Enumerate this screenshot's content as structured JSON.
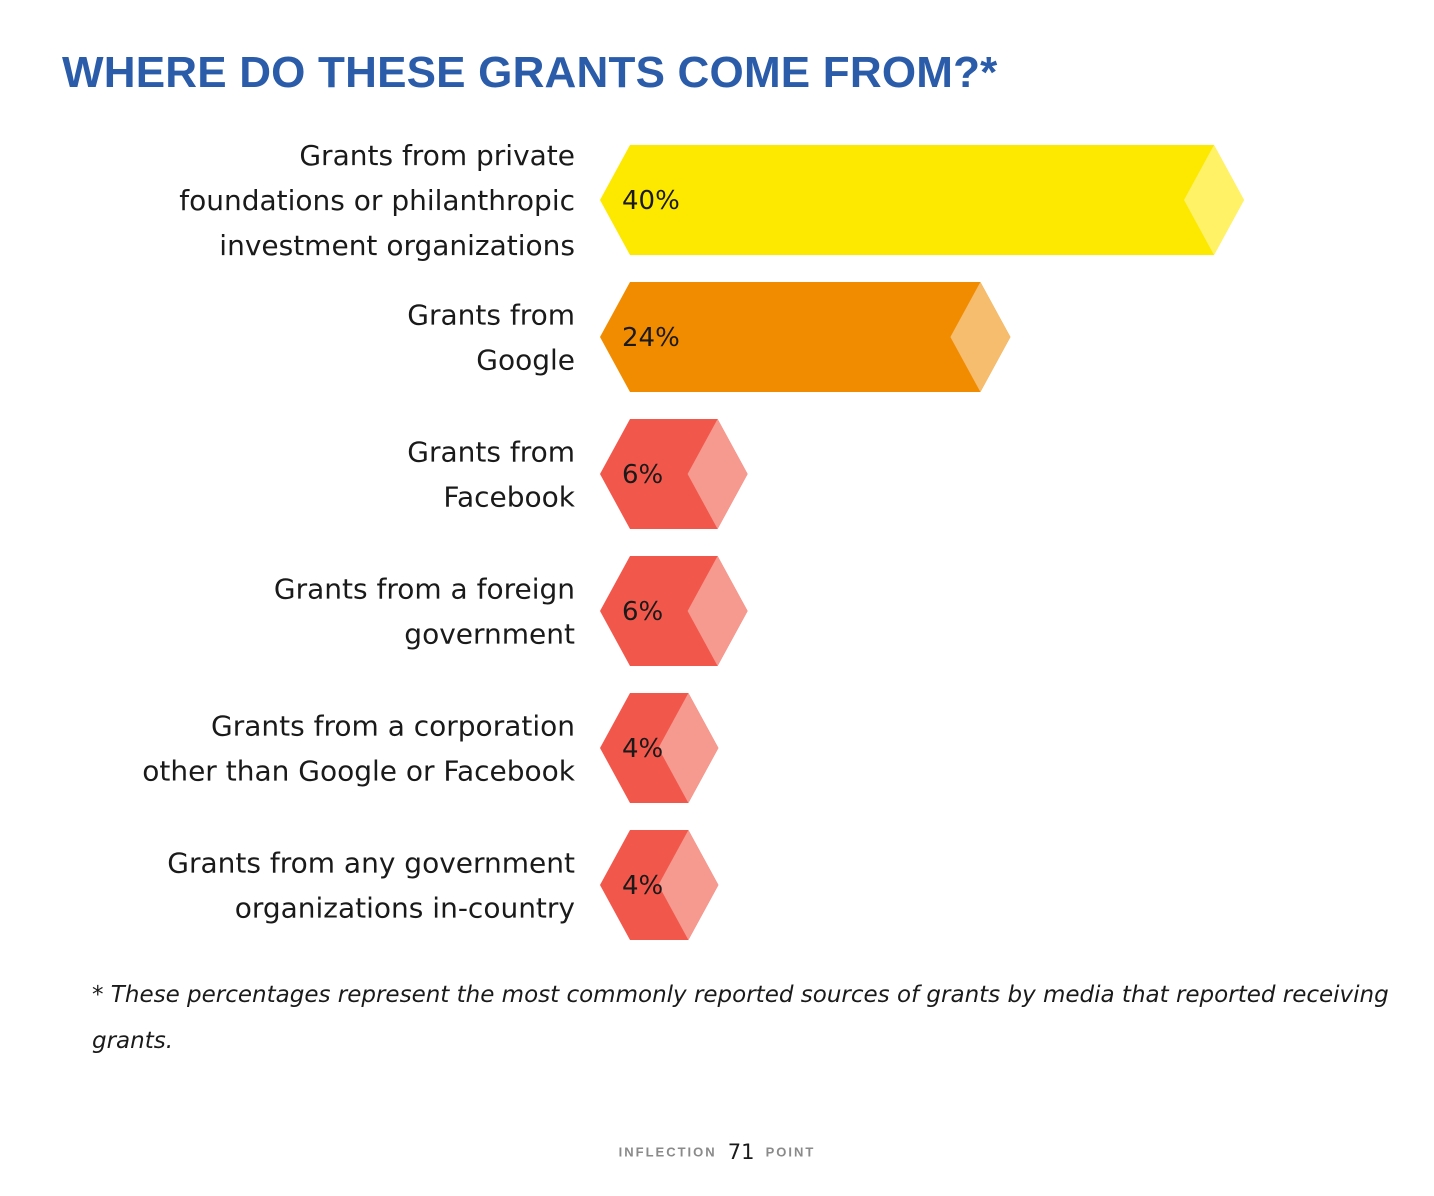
{
  "title": "WHERE DO THESE GRANTS COME FROM?*",
  "chart_data": {
    "type": "bar",
    "orientation": "horizontal",
    "title": "WHERE DO THESE GRANTS COME FROM?*",
    "categories": [
      [
        "Grants from private",
        "foundations or philanthropic",
        "investment organizations"
      ],
      [
        "Grants from",
        "Google"
      ],
      [
        "Grants from",
        "Facebook"
      ],
      [
        "Grants from a foreign",
        "government"
      ],
      [
        "Grants from a corporation",
        "other than Google or Facebook"
      ],
      [
        "Grants from any government",
        "organizations in-country"
      ]
    ],
    "values": [
      40,
      24,
      6,
      6,
      4,
      4
    ],
    "value_labels": [
      "40%",
      "24%",
      "6%",
      "6%",
      "4%",
      "4%"
    ],
    "unit": "%",
    "colors": [
      "#fde800",
      "#f18c00",
      "#f2574b",
      "#f2574b",
      "#f2574b",
      "#f2574b"
    ],
    "highlight_colors": [
      "#fff266",
      "#f6bd6e",
      "#f69a90",
      "#f69a90",
      "#f69a90",
      "#f69a90"
    ],
    "xlim": [
      0,
      40
    ],
    "grid": false,
    "legend": "none"
  },
  "footnote": "* These percentages represent the most commonly reported sources of grants by media that reported receiving grants.",
  "footer": {
    "left": "INFLECTION",
    "page_number": "71",
    "right": "POINT"
  }
}
